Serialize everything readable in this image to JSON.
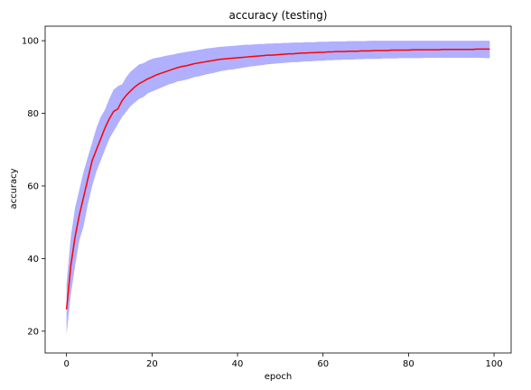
{
  "chart_data": {
    "type": "line",
    "title": "accuracy (testing)",
    "xlabel": "epoch",
    "ylabel": "accuracy",
    "xlim": [
      -5,
      104
    ],
    "ylim": [
      14,
      104
    ],
    "xticks": [
      0,
      20,
      40,
      60,
      80,
      100
    ],
    "yticks": [
      20,
      40,
      60,
      80,
      100
    ],
    "grid": false,
    "line_color": "#ff0000",
    "band_color": "#b0b0ff",
    "x": [
      0,
      1,
      2,
      3,
      4,
      5,
      6,
      7,
      8,
      9,
      10,
      11,
      12,
      13,
      14,
      15,
      16,
      17,
      18,
      19,
      20,
      21,
      22,
      23,
      24,
      25,
      26,
      27,
      28,
      29,
      30,
      31,
      32,
      33,
      34,
      35,
      36,
      37,
      38,
      39,
      40,
      41,
      42,
      43,
      44,
      45,
      46,
      47,
      48,
      49,
      50,
      51,
      52,
      53,
      54,
      55,
      56,
      57,
      58,
      59,
      60,
      61,
      62,
      63,
      64,
      65,
      66,
      67,
      68,
      69,
      70,
      71,
      72,
      73,
      74,
      75,
      76,
      77,
      78,
      79,
      80,
      81,
      82,
      83,
      84,
      85,
      86,
      87,
      88,
      89,
      90,
      91,
      92,
      93,
      94,
      95,
      96,
      97,
      98,
      99
    ],
    "series": [
      {
        "values": [
          26,
          38,
          46,
          52,
          57,
          62,
          67,
          70,
          73,
          76,
          78.5,
          80.5,
          81.2,
          83.5,
          85,
          86.2,
          87.3,
          88.2,
          88.8,
          89.5,
          90,
          90.6,
          91,
          91.4,
          91.8,
          92.2,
          92.6,
          92.9,
          93.1,
          93.4,
          93.7,
          93.9,
          94.1,
          94.3,
          94.5,
          94.7,
          94.9,
          95,
          95.1,
          95.2,
          95.3,
          95.4,
          95.5,
          95.6,
          95.7,
          95.8,
          95.9,
          96,
          96,
          96.1,
          96.2,
          96.3,
          96.4,
          96.4,
          96.5,
          96.6,
          96.6,
          96.7,
          96.7,
          96.8,
          96.8,
          96.9,
          96.9,
          97,
          97,
          97,
          97.1,
          97.1,
          97.1,
          97.2,
          97.2,
          97.2,
          97.3,
          97.3,
          97.3,
          97.3,
          97.4,
          97.4,
          97.4,
          97.4,
          97.4,
          97.5,
          97.5,
          97.5,
          97.5,
          97.5,
          97.5,
          97.5,
          97.6,
          97.6,
          97.6,
          97.6,
          97.6,
          97.6,
          97.6,
          97.6,
          97.7,
          97.7,
          97.7,
          97.7
        ],
        "lower": [
          19,
          30,
          38,
          45,
          49,
          55,
          60,
          64,
          67,
          70,
          73,
          75,
          77,
          79,
          80.5,
          82,
          83,
          84,
          84.5,
          85.5,
          86,
          86.5,
          87,
          87.5,
          88,
          88.3,
          88.8,
          89,
          89.3,
          89.6,
          90,
          90.2,
          90.5,
          90.8,
          91,
          91.3,
          91.6,
          91.8,
          92,
          92.1,
          92.3,
          92.5,
          92.7,
          92.9,
          93,
          93.2,
          93.3,
          93.5,
          93.6,
          93.7,
          93.8,
          93.9,
          94,
          94.1,
          94.1,
          94.2,
          94.3,
          94.3,
          94.4,
          94.5,
          94.5,
          94.6,
          94.6,
          94.7,
          94.7,
          94.8,
          94.8,
          94.8,
          94.9,
          94.9,
          95,
          95,
          95,
          95,
          95.1,
          95.1,
          95.1,
          95.1,
          95.2,
          95.2,
          95.2,
          95.2,
          95.2,
          95.2,
          95.3,
          95.3,
          95.3,
          95.3,
          95.3,
          95.3,
          95.3,
          95.3,
          95.3,
          95.3,
          95.3,
          95.3,
          95.3,
          95.3,
          95.2,
          95.2
        ],
        "upper": [
          33,
          46,
          54,
          59,
          64,
          68,
          72,
          76,
          79,
          81,
          84,
          86.5,
          87.5,
          88,
          90,
          91.5,
          92.5,
          93.5,
          93.8,
          94.5,
          95,
          95.3,
          95.5,
          95.8,
          96,
          96.2,
          96.5,
          96.7,
          96.9,
          97.1,
          97.3,
          97.5,
          97.7,
          97.9,
          98,
          98.2,
          98.3,
          98.4,
          98.5,
          98.6,
          98.7,
          98.8,
          98.9,
          98.9,
          99,
          99.1,
          99.1,
          99.2,
          99.2,
          99.3,
          99.3,
          99.4,
          99.4,
          99.5,
          99.5,
          99.5,
          99.6,
          99.6,
          99.6,
          99.7,
          99.7,
          99.7,
          99.8,
          99.8,
          99.8,
          99.8,
          99.9,
          99.9,
          99.9,
          99.9,
          99.9,
          100,
          100,
          100,
          100,
          100,
          100,
          100,
          100,
          100,
          100,
          100,
          100,
          100,
          100,
          100,
          100,
          100,
          100,
          100,
          100,
          100,
          100,
          100,
          100,
          100,
          100,
          100,
          100,
          100
        ]
      }
    ]
  }
}
